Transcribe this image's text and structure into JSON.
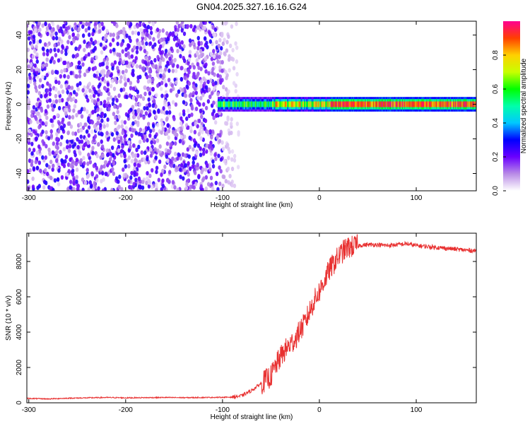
{
  "title": "GN04.2025.327.16.16.G24",
  "chart_data": [
    {
      "type": "heatmap",
      "name": "spectrogram",
      "xlabel": "Height of straight line (km)",
      "ylabel": "Frequency (Hz)",
      "xlim": [
        -302,
        162
      ],
      "ylim": [
        -50,
        48
      ],
      "xticks": [
        -300,
        -200,
        -100,
        0,
        100
      ],
      "yticks": [
        -40,
        -20,
        0,
        20,
        40
      ],
      "noise_region_x": [
        -302,
        -100
      ],
      "signal_band": {
        "x_start": -105,
        "x_end": 162,
        "freq_center": 0,
        "freq_half_width": 3
      },
      "colorbar": {
        "label": "Normalized spectral amplitude",
        "range": [
          0.0,
          1.0
        ],
        "ticks": [
          0.0,
          0.2,
          0.4,
          0.6,
          0.8
        ],
        "tick_labels": [
          "0.0",
          "0.2",
          "0.4",
          "0.6",
          "0.8"
        ],
        "stops": [
          {
            "v": 0.0,
            "color": "#ffffff"
          },
          {
            "v": 0.1,
            "color": "#b98be6"
          },
          {
            "v": 0.2,
            "color": "#6a00ff"
          },
          {
            "v": 0.3,
            "color": "#0000ff"
          },
          {
            "v": 0.4,
            "color": "#00c8ff"
          },
          {
            "v": 0.5,
            "color": "#00ffaa"
          },
          {
            "v": 0.6,
            "color": "#00ff00"
          },
          {
            "v": 0.7,
            "color": "#c8ff00"
          },
          {
            "v": 0.8,
            "color": "#ffd000"
          },
          {
            "v": 0.9,
            "color": "#ff4000"
          },
          {
            "v": 1.0,
            "color": "#ff0090"
          }
        ]
      }
    },
    {
      "type": "line",
      "name": "snr",
      "xlabel": "Height of straight line (km)",
      "ylabel": "SNR (10 * v/v)",
      "xlim": [
        -302,
        162
      ],
      "ylim": [
        0,
        9600
      ],
      "xticks": [
        -300,
        -200,
        -100,
        0,
        100
      ],
      "yticks": [
        0,
        2000,
        4000,
        6000,
        8000
      ],
      "color": "#e83030",
      "series": [
        {
          "name": "SNR",
          "x": [
            -302,
            -280,
            -260,
            -240,
            -220,
            -200,
            -180,
            -160,
            -140,
            -120,
            -100,
            -90,
            -80,
            -70,
            -60,
            -50,
            -45,
            -40,
            -35,
            -30,
            -25,
            -20,
            -15,
            -10,
            -5,
            0,
            5,
            10,
            15,
            20,
            25,
            30,
            40,
            50,
            60,
            70,
            80,
            90,
            100,
            110,
            120,
            130,
            140,
            150,
            162
          ],
          "y": [
            250,
            220,
            260,
            280,
            300,
            280,
            290,
            300,
            290,
            300,
            310,
            320,
            400,
            700,
            1100,
            1500,
            2100,
            2600,
            3000,
            3300,
            3600,
            4100,
            4500,
            5200,
            5800,
            6300,
            6900,
            7500,
            7900,
            8300,
            8600,
            8800,
            8900,
            8950,
            8950,
            8900,
            8950,
            9000,
            8900,
            8850,
            8800,
            8750,
            8700,
            8650,
            8600
          ]
        }
      ]
    }
  ]
}
